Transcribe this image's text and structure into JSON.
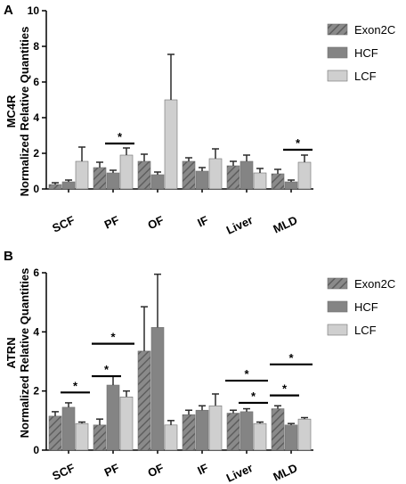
{
  "colors": {
    "exon2c_fill": "#8a8a8a",
    "exon2c_hatch": "#5e5e5e",
    "hcf": "#848484",
    "lcf": "#cfcfcf",
    "axis": "#000000",
    "error_bar": "#2a2a2a"
  },
  "chart_data": [
    {
      "panel": "A",
      "type": "bar",
      "ylabel_line1": "MC4R",
      "ylabel_line2": "Normalized Relative Quantities",
      "ylim": [
        0,
        10
      ],
      "yticks": [
        "0",
        "2",
        "4",
        "6",
        "8",
        "10"
      ],
      "ytick_values": [
        0,
        2,
        4,
        6,
        8,
        10
      ],
      "categories": [
        "SCF",
        "PF",
        "OF",
        "IF",
        "Liver",
        "MLD"
      ],
      "legend_position": "top-right",
      "series": [
        {
          "name": "Exon2C",
          "values": [
            0.25,
            1.2,
            1.55,
            1.55,
            1.3,
            0.85
          ],
          "errors": [
            0.1,
            0.3,
            0.4,
            0.2,
            0.25,
            0.25
          ]
        },
        {
          "name": "HCF",
          "values": [
            0.4,
            0.9,
            0.8,
            1.0,
            1.55,
            0.4
          ],
          "errors": [
            0.1,
            0.15,
            0.15,
            0.2,
            0.35,
            0.1
          ]
        },
        {
          "name": "LCF",
          "values": [
            1.55,
            1.9,
            5.0,
            1.7,
            0.9,
            1.5
          ],
          "errors": [
            0.8,
            0.4,
            2.55,
            0.55,
            0.25,
            0.4
          ]
        }
      ],
      "significance": [
        {
          "category": 1,
          "from": 1,
          "to": 2,
          "y": 2.55,
          "label": "*"
        },
        {
          "category": 5,
          "from": 1,
          "to": 2,
          "y": 2.2,
          "label": "*"
        }
      ]
    },
    {
      "panel": "B",
      "type": "bar",
      "ylabel_line1": "ATRN",
      "ylabel_line2": "Normalized Relative Quantities",
      "ylim": [
        0,
        6
      ],
      "yticks": [
        "0",
        "2",
        "4",
        "6"
      ],
      "ytick_values": [
        0,
        2,
        4,
        6
      ],
      "categories": [
        "SCF",
        "PF",
        "OF",
        "IF",
        "Liver",
        "MLD"
      ],
      "legend_position": "top-right",
      "series": [
        {
          "name": "Exon2C",
          "values": [
            1.15,
            0.85,
            3.35,
            1.2,
            1.25,
            1.4
          ],
          "errors": [
            0.15,
            0.2,
            1.5,
            0.15,
            0.1,
            0.1
          ]
        },
        {
          "name": "HCF",
          "values": [
            1.45,
            2.2,
            4.15,
            1.35,
            1.3,
            0.85
          ],
          "errors": [
            0.15,
            0.3,
            1.8,
            0.15,
            0.1,
            0.05
          ]
        },
        {
          "name": "LCF",
          "values": [
            0.9,
            1.8,
            0.85,
            1.5,
            0.9,
            1.05
          ],
          "errors": [
            0.05,
            0.2,
            0.15,
            0.4,
            0.05,
            0.05
          ]
        }
      ],
      "significance": [
        {
          "category": 0,
          "from": 1,
          "to": 2,
          "y": 1.95,
          "label": "*"
        },
        {
          "category": 1,
          "from": 0,
          "to": 1,
          "y": 2.5,
          "label": "*"
        },
        {
          "category": 1,
          "from": 0,
          "to": 2,
          "y": 3.6,
          "label": "*"
        },
        {
          "category": 4,
          "from": 0,
          "to": 2,
          "y": 2.35,
          "label": "*"
        },
        {
          "category": 4,
          "from": 1,
          "to": 2,
          "y": 1.6,
          "label": "*"
        },
        {
          "category": 5,
          "from": 0,
          "to": 1,
          "y": 1.85,
          "label": "*"
        },
        {
          "category": 5,
          "from": 0,
          "to": 2,
          "y": 2.9,
          "label": "*"
        }
      ]
    }
  ]
}
